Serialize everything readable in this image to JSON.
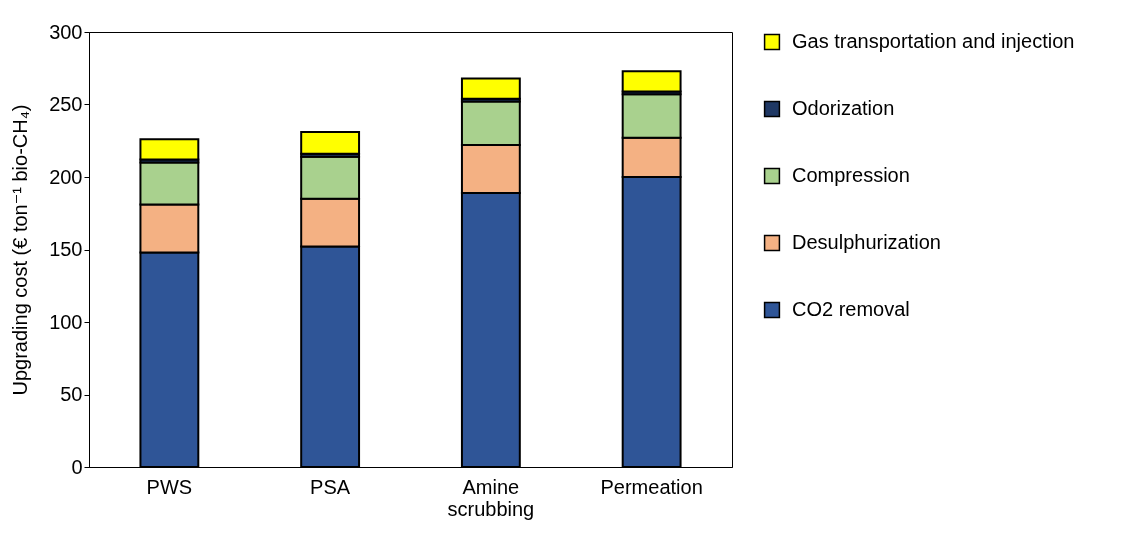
{
  "chart_data": {
    "type": "bar",
    "stacked": true,
    "ylabel": "Upgrading cost (€ ton⁻¹ bio-CH₄)",
    "categories": [
      "PWS",
      "PSA",
      "Amine scrubbing",
      "Permeation"
    ],
    "series": [
      {
        "name": "CO2 removal",
        "color": "#2f5597",
        "values": [
          148,
          152,
          189,
          200
        ]
      },
      {
        "name": "Desulphurization",
        "color": "#f4b183",
        "values": [
          33,
          33,
          33,
          27
        ]
      },
      {
        "name": "Compression",
        "color": "#a9d18e",
        "values": [
          29,
          29,
          30,
          30
        ]
      },
      {
        "name": "Odorization",
        "color": "#1f3864",
        "values": [
          2,
          2,
          2,
          2
        ]
      },
      {
        "name": "Gas transportation and injection",
        "color": "#ffff00",
        "values": [
          14,
          15,
          14,
          14
        ]
      }
    ],
    "ylim": [
      0,
      300
    ],
    "yticks": [
      0,
      50,
      100,
      150,
      200,
      250,
      300
    ],
    "grid": false,
    "legend": "right"
  }
}
